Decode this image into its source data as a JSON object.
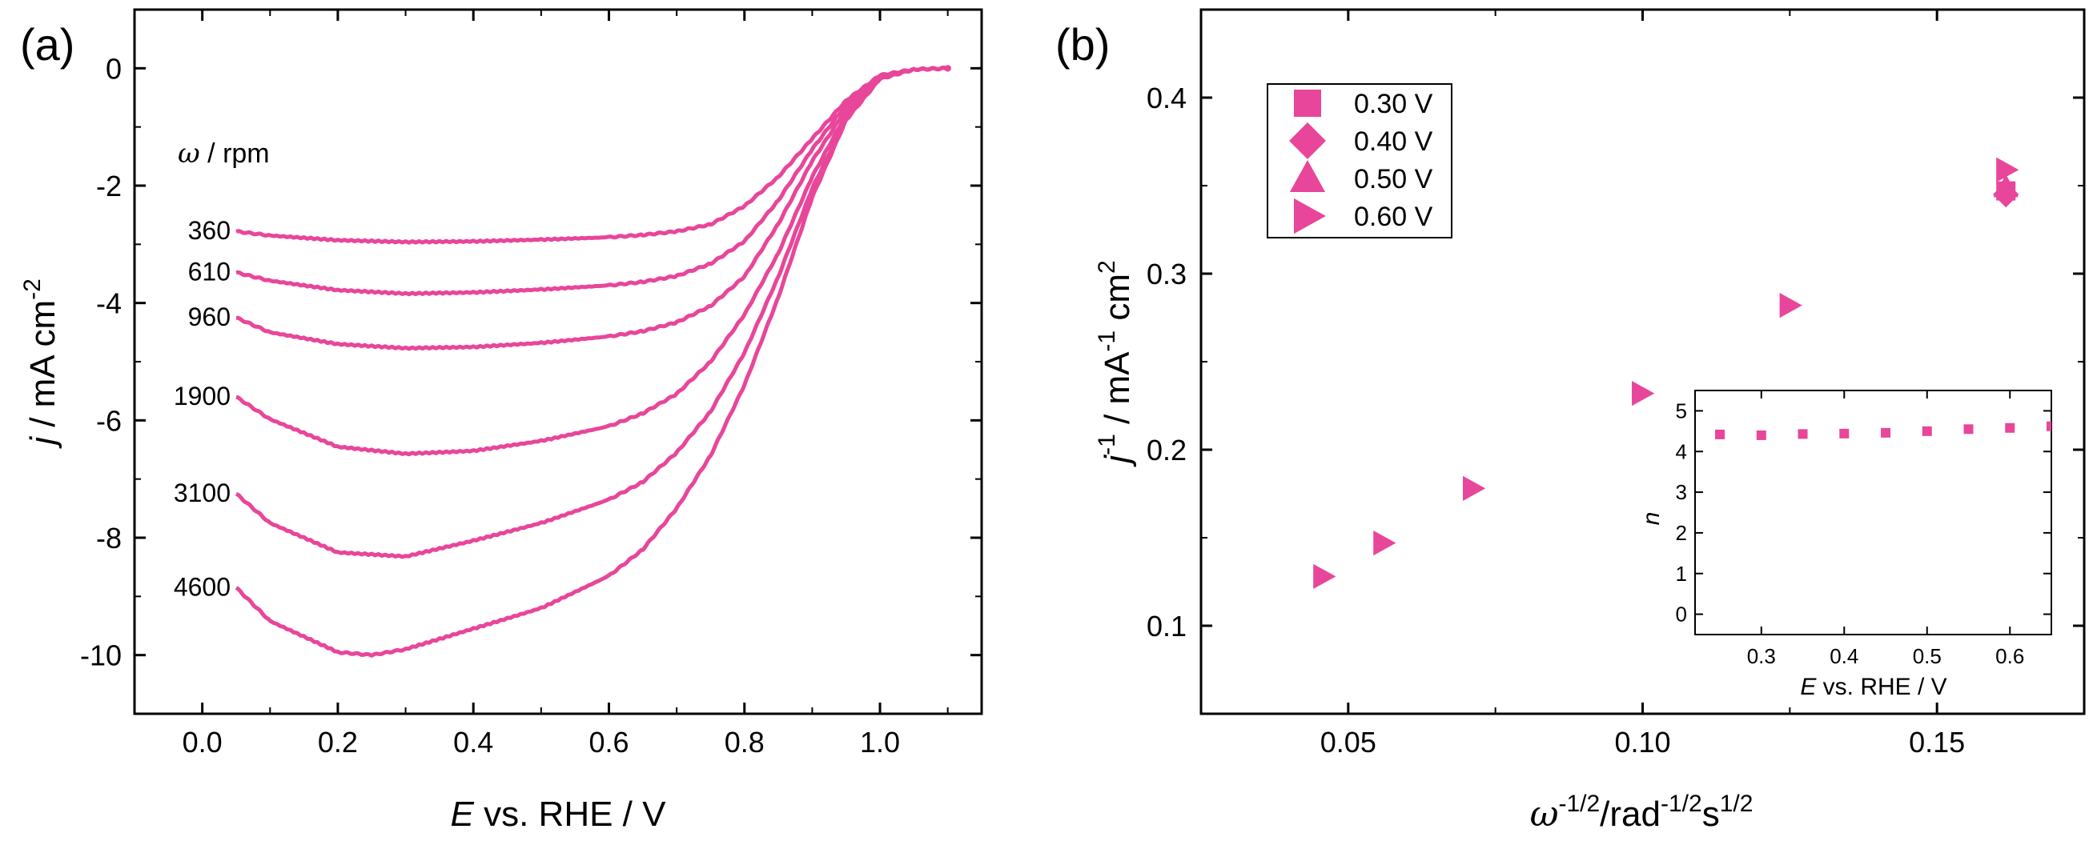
{
  "figure": {
    "accent_color": "#e8469a",
    "panels": [
      "(a)",
      "(b)"
    ]
  },
  "chart_data": [
    {
      "panel": "(a)",
      "type": "line",
      "title": "",
      "xlabel_italic": "E",
      "xlabel_rest": " vs. RHE / V",
      "ylabel_italic": "j",
      "ylabel_rest": " / mA cm",
      "ylabel_sup": "-2",
      "xlim": [
        -0.1,
        1.15
      ],
      "ylim": [
        -11,
        1
      ],
      "xticks": [
        0.0,
        0.2,
        0.4,
        0.6,
        0.8,
        1.0
      ],
      "xtick_labels": [
        "0.0",
        "0.2",
        "0.4",
        "0.6",
        "0.8",
        "1.0"
      ],
      "yticks": [
        0,
        -2,
        -4,
        -6,
        -8,
        -10
      ],
      "ytick_labels": [
        "0",
        "-2",
        "-4",
        "-6",
        "-8",
        "-10"
      ],
      "rotation_header_symbol": "ω",
      "rotation_header_rest": " / rpm",
      "series": [
        {
          "name": "360",
          "label": "360",
          "x": [
            0.05,
            0.1,
            0.2,
            0.3,
            0.4,
            0.5,
            0.6,
            0.65,
            0.7,
            0.75,
            0.8,
            0.85,
            0.9,
            0.95,
            1.0,
            1.05,
            1.1
          ],
          "y": [
            -2.78,
            -2.85,
            -2.93,
            -2.96,
            -2.95,
            -2.92,
            -2.88,
            -2.84,
            -2.78,
            -2.66,
            -2.35,
            -1.85,
            -1.2,
            -0.55,
            -0.12,
            -0.02,
            0.0
          ]
        },
        {
          "name": "610",
          "label": "610",
          "x": [
            0.05,
            0.1,
            0.2,
            0.3,
            0.4,
            0.5,
            0.6,
            0.65,
            0.7,
            0.75,
            0.8,
            0.85,
            0.9,
            0.95,
            1.0,
            1.05,
            1.1
          ],
          "y": [
            -3.48,
            -3.62,
            -3.78,
            -3.84,
            -3.82,
            -3.77,
            -3.7,
            -3.64,
            -3.54,
            -3.33,
            -2.95,
            -2.25,
            -1.38,
            -0.62,
            -0.13,
            -0.02,
            0.0
          ]
        },
        {
          "name": "960",
          "label": "960",
          "x": [
            0.05,
            0.1,
            0.2,
            0.3,
            0.4,
            0.5,
            0.6,
            0.65,
            0.7,
            0.75,
            0.8,
            0.85,
            0.9,
            0.95,
            1.0,
            1.05,
            1.1
          ],
          "y": [
            -4.25,
            -4.5,
            -4.7,
            -4.77,
            -4.75,
            -4.68,
            -4.57,
            -4.48,
            -4.33,
            -4.05,
            -3.55,
            -2.65,
            -1.58,
            -0.7,
            -0.15,
            -0.02,
            0.0
          ]
        },
        {
          "name": "1900",
          "label": "1900",
          "x": [
            0.05,
            0.1,
            0.2,
            0.3,
            0.4,
            0.5,
            0.6,
            0.65,
            0.7,
            0.75,
            0.8,
            0.85,
            0.9,
            0.95,
            1.0,
            1.05,
            1.1
          ],
          "y": [
            -5.6,
            -5.98,
            -6.45,
            -6.57,
            -6.52,
            -6.35,
            -6.1,
            -5.88,
            -5.55,
            -5.0,
            -4.2,
            -3.15,
            -1.85,
            -0.78,
            -0.16,
            -0.02,
            0.0
          ]
        },
        {
          "name": "3100",
          "label": "3100",
          "x": [
            0.05,
            0.1,
            0.2,
            0.3,
            0.4,
            0.5,
            0.6,
            0.65,
            0.7,
            0.75,
            0.8,
            0.85,
            0.9,
            0.95,
            1.0,
            1.05,
            1.1
          ],
          "y": [
            -7.25,
            -7.75,
            -8.25,
            -8.32,
            -8.05,
            -7.75,
            -7.35,
            -7.05,
            -6.55,
            -5.85,
            -4.85,
            -3.55,
            -2.05,
            -0.85,
            -0.17,
            -0.02,
            0.0
          ]
        },
        {
          "name": "4600",
          "label": "4600",
          "x": [
            0.05,
            0.1,
            0.2,
            0.25,
            0.3,
            0.4,
            0.5,
            0.6,
            0.65,
            0.7,
            0.75,
            0.8,
            0.85,
            0.9,
            0.95,
            1.0,
            1.05,
            1.1
          ],
          "y": [
            -8.85,
            -9.42,
            -9.95,
            -10.0,
            -9.9,
            -9.55,
            -9.2,
            -8.65,
            -8.2,
            -7.5,
            -6.6,
            -5.4,
            -3.9,
            -2.2,
            -0.88,
            -0.18,
            -0.02,
            0.0
          ]
        }
      ]
    },
    {
      "panel": "(b)",
      "type": "scatter",
      "title": "",
      "xlabel_sym": "ω",
      "xlabel_sup1": "-1/2",
      "xlabel_mid": "/rad",
      "xlabel_sup2": "-1/2",
      "xlabel_s": "s",
      "xlabel_sup3": "1/2",
      "ylabel_sym": "j",
      "ylabel_sup1": "-1",
      "ylabel_mid": " / mA",
      "ylabel_sup2": "-1",
      "ylabel_end": " cm",
      "ylabel_sup3": "2",
      "xlim": [
        0.025,
        0.175
      ],
      "ylim": [
        0.05,
        0.45
      ],
      "xticks": [
        0.05,
        0.1,
        0.15
      ],
      "xtick_labels": [
        "0.05",
        "0.10",
        "0.15"
      ],
      "yticks": [
        0.1,
        0.2,
        0.3,
        0.4
      ],
      "ytick_labels": [
        "0.1",
        "0.2",
        "0.3",
        "0.4"
      ],
      "legend_position": "top-left",
      "series": [
        {
          "name": "0.30 V",
          "marker": "square",
          "x": [
            0.1617
          ],
          "y": [
            0.347
          ]
        },
        {
          "name": "0.40 V",
          "marker": "diamond",
          "x": [
            0.1617
          ],
          "y": [
            0.345
          ]
        },
        {
          "name": "0.50 V",
          "marker": "triangle-up",
          "x": [
            0.1617
          ],
          "y": [
            0.349
          ]
        },
        {
          "name": "0.60 V",
          "marker": "triangle-right",
          "x": [
            0.0457,
            0.0559,
            0.0711,
            0.0998,
            0.1249,
            0.1617
          ],
          "y": [
            0.128,
            0.147,
            0.178,
            0.232,
            0.282,
            0.359
          ]
        }
      ],
      "inset": {
        "type": "scatter",
        "xlabel_italic": "E",
        "xlabel_rest": " vs. RHE / V",
        "ylabel": "n",
        "xlim": [
          0.22,
          0.65
        ],
        "ylim": [
          -0.5,
          5.5
        ],
        "xticks": [
          0.3,
          0.4,
          0.5,
          0.6
        ],
        "xtick_labels": [
          "0.3",
          "0.4",
          "0.5",
          "0.6"
        ],
        "yticks": [
          0,
          1,
          2,
          3,
          4,
          5
        ],
        "ytick_labels": [
          "0",
          "1",
          "2",
          "3",
          "4",
          "5"
        ],
        "x": [
          0.25,
          0.3,
          0.35,
          0.4,
          0.45,
          0.5,
          0.55,
          0.6,
          0.65
        ],
        "y": [
          4.42,
          4.4,
          4.43,
          4.44,
          4.46,
          4.5,
          4.55,
          4.58,
          4.62
        ]
      }
    }
  ]
}
